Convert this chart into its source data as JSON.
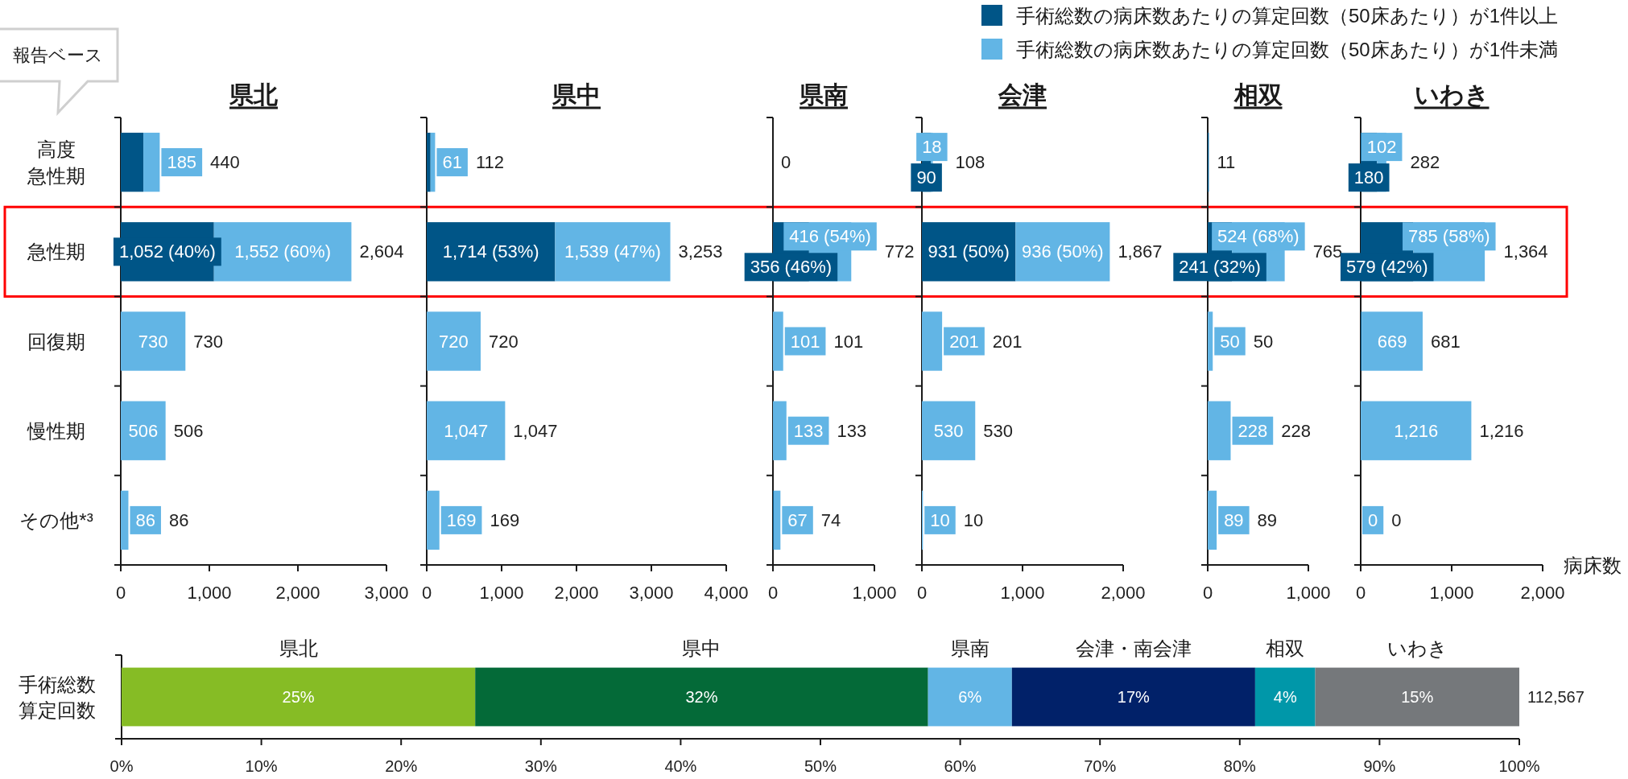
{
  "chart_data": [
    {
      "type": "bar",
      "orientation": "horizontal",
      "stacked": true,
      "title": "県北",
      "categories": [
        "高度急性期",
        "急性期",
        "回復期",
        "慢性期",
        "その他*³"
      ],
      "series": [
        {
          "name": "手術総数の病床数あたりの算定回数（50床あたり）が1件以上",
          "color": "#005587",
          "values": [
            255,
            1052,
            null,
            null,
            null
          ],
          "value_labels": [
            null,
            "1,052 (40%)",
            null,
            null,
            null
          ]
        },
        {
          "name": "手術総数の病床数あたりの算定回数（50床あたり）が1件未満",
          "color": "#62b5e5",
          "values": [
            185,
            1552,
            730,
            506,
            86
          ],
          "value_labels": [
            "185",
            "1,552 (60%)",
            "730",
            "506",
            "86"
          ]
        }
      ],
      "totals": [
        "440",
        "2,604",
        "730",
        "506",
        "86"
      ],
      "xlim": [
        0,
        3000
      ],
      "xticks": [
        {
          "value": 0,
          "label": "0"
        },
        {
          "value": 1000,
          "label": "1,000"
        },
        {
          "value": 2000,
          "label": "2,000"
        },
        {
          "value": 3000,
          "label": "3,000"
        }
      ],
      "legend": "top right",
      "annotations": [
        "報告ベース"
      ]
    },
    {
      "type": "bar",
      "orientation": "horizontal",
      "stacked": true,
      "title": "県中",
      "categories": [
        "高度急性期",
        "急性期",
        "回復期",
        "慢性期",
        "その他*³"
      ],
      "tick_labels": "x",
      "series": [
        {
          "color": "#005587",
          "values": [
            51,
            1714,
            null,
            null,
            null
          ],
          "value_labels": [
            null,
            "1,714 (53%)",
            null,
            null,
            null
          ]
        },
        {
          "color": "#62b5e5",
          "values": [
            61,
            1539,
            720,
            1047,
            169
          ],
          "value_labels": [
            "61",
            "1,539 (47%)",
            "720",
            "1,047",
            "169"
          ]
        }
      ],
      "totals": [
        "112",
        "3,253",
        "720",
        "1,047",
        "169"
      ],
      "xlim": [
        0,
        4000
      ],
      "xticks": [
        {
          "value": 0,
          "label": "0"
        },
        {
          "value": 1000,
          "label": "1,000"
        },
        {
          "value": 2000,
          "label": "2,000"
        },
        {
          "value": 3000,
          "label": "3,000"
        },
        {
          "value": 4000,
          "label": "4,000"
        }
      ]
    },
    {
      "type": "bar",
      "orientation": "horizontal",
      "stacked": true,
      "title": "県南",
      "categories": [
        "高度急性期",
        "急性期",
        "回復期",
        "慢性期",
        "その他*³"
      ],
      "tick_labels": "x",
      "series": [
        {
          "color": "#005587",
          "values": [
            null,
            356,
            null,
            null,
            7
          ],
          "value_labels": [
            null,
            "356 (46%)",
            null,
            null,
            null
          ]
        },
        {
          "color": "#62b5e5",
          "values": [
            0,
            416,
            101,
            133,
            67
          ],
          "value_labels": [
            null,
            "416 (54%)",
            "101",
            "133",
            "67"
          ]
        }
      ],
      "totals": [
        "0",
        "772",
        "101",
        "133",
        "74"
      ],
      "xlim": [
        0,
        1000
      ],
      "xticks": [
        {
          "value": 0,
          "label": "0"
        },
        {
          "value": 1000,
          "label": "1,000"
        }
      ]
    },
    {
      "type": "bar",
      "orientation": "horizontal",
      "stacked": true,
      "title": "会津",
      "categories": [
        "高度急性期",
        "急性期",
        "回復期",
        "慢性期",
        "その他*³"
      ],
      "tick_labels": "x",
      "series": [
        {
          "color": "#005587",
          "values": [
            90,
            931,
            null,
            null,
            null
          ],
          "value_labels": [
            "90",
            "931 (50%)",
            null,
            null,
            null
          ]
        },
        {
          "color": "#62b5e5",
          "values": [
            18,
            936,
            201,
            530,
            10
          ],
          "value_labels": [
            "18",
            "936 (50%)",
            "201",
            "530",
            "10"
          ]
        }
      ],
      "totals": [
        "108",
        "1,867",
        "201",
        "530",
        "10"
      ],
      "xlim": [
        0,
        2000
      ],
      "xticks": [
        {
          "value": 0,
          "label": "0"
        },
        {
          "value": 1000,
          "label": "1,000"
        },
        {
          "value": 2000,
          "label": "2,000"
        }
      ]
    },
    {
      "type": "bar",
      "orientation": "horizontal",
      "stacked": true,
      "title": "相双",
      "categories": [
        "高度急性期",
        "急性期",
        "回復期",
        "慢性期",
        "その他*³"
      ],
      "tick_labels": "x",
      "series": [
        {
          "color": "#005587",
          "values": [
            11,
            241,
            null,
            null,
            null
          ],
          "value_labels": [
            null,
            "241 (32%)",
            null,
            null,
            null
          ]
        },
        {
          "color": "#62b5e5",
          "values": [
            null,
            524,
            50,
            228,
            89
          ],
          "value_labels": [
            null,
            "524 (68%)",
            "50",
            "228",
            "89"
          ]
        }
      ],
      "totals": [
        "11",
        "765",
        "50",
        "228",
        "89"
      ],
      "xlim": [
        0,
        1000
      ],
      "xticks": [
        {
          "value": 0,
          "label": "0"
        },
        {
          "value": 1000,
          "label": "1,000"
        }
      ]
    },
    {
      "type": "bar",
      "orientation": "horizontal",
      "stacked": true,
      "title": "いわき",
      "xlabel": "病床数",
      "categories": [
        "高度急性期",
        "急性期",
        "回復期",
        "慢性期",
        "その他*³"
      ],
      "tick_labels": "x",
      "series": [
        {
          "color": "#005587",
          "values": [
            180,
            579,
            12,
            null,
            null
          ],
          "value_labels": [
            "180",
            "579 (42%)",
            null,
            null,
            null
          ]
        },
        {
          "color": "#62b5e5",
          "values": [
            102,
            785,
            669,
            1216,
            0
          ],
          "value_labels": [
            "102",
            "785 (58%)",
            "669",
            "1,216",
            "0"
          ]
        }
      ],
      "totals": [
        "282",
        "1,364",
        "681",
        "1,216",
        "0"
      ],
      "xlim": [
        0,
        2000
      ],
      "xticks": [
        {
          "value": 0,
          "label": "0"
        },
        {
          "value": 1000,
          "label": "1,000"
        },
        {
          "value": 2000,
          "label": "2,000"
        }
      ]
    },
    {
      "type": "bar",
      "orientation": "horizontal",
      "stacked": true,
      "categories": [
        "手術総数算定回数"
      ],
      "series": [
        {
          "name": "県北",
          "color": "#86bc25",
          "values": [
            25.3
          ],
          "value_labels": [
            "25%"
          ]
        },
        {
          "name": "県中",
          "color": "#046a38",
          "values": [
            32.4
          ],
          "value_labels": [
            "32%"
          ]
        },
        {
          "name": "県南",
          "color": "#62b5e5",
          "values": [
            6.0
          ],
          "value_labels": [
            "6%"
          ]
        },
        {
          "name": "会津・南会津",
          "color": "#012169",
          "values": [
            17.4
          ],
          "value_labels": [
            "17%"
          ]
        },
        {
          "name": "相双",
          "color": "#0097a9",
          "values": [
            4.3
          ],
          "value_labels": [
            "4%"
          ]
        },
        {
          "name": "いわき",
          "color": "#75787b",
          "values": [
            14.6
          ],
          "value_labels": [
            "15%"
          ]
        }
      ],
      "annotations": [
        {
          "text": "112,567",
          "x": 100,
          "y": "手術総数算定回数"
        }
      ],
      "xlim": [
        0,
        100
      ],
      "xticks": [
        {
          "value": 0,
          "label": "0%"
        },
        {
          "value": 10,
          "label": "10%"
        },
        {
          "value": 20,
          "label": "20%"
        },
        {
          "value": 30,
          "label": "30%"
        },
        {
          "value": 40,
          "label": "40%"
        },
        {
          "value": 50,
          "label": "50%"
        },
        {
          "value": 60,
          "label": "60%"
        },
        {
          "value": 70,
          "label": "70%"
        },
        {
          "value": 80,
          "label": "80%"
        },
        {
          "value": 90,
          "label": "90%"
        },
        {
          "value": 100,
          "label": "100%"
        }
      ]
    }
  ]
}
